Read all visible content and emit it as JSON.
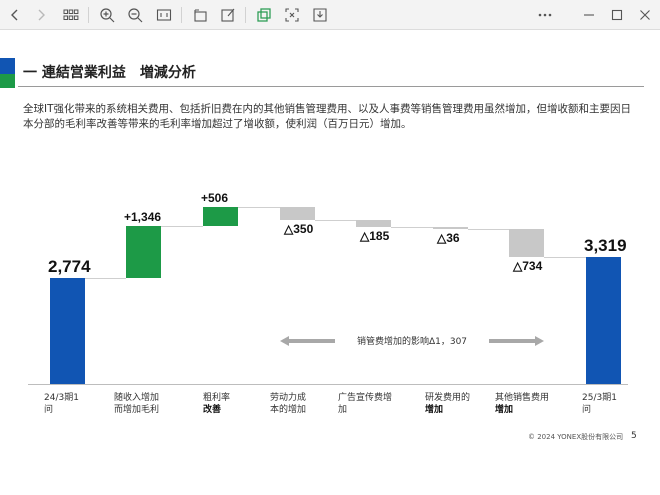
{
  "slide": {
    "title": "一 連結営業利益　増減分析",
    "description": "全球IT强化带来的系统相关费用、包括折旧费在内的其他销售管理费用、以及人事费等销售管理费用虽然增加，但增收额和主要因日本分部的毛利率改善等带来的毛利率增加超过了增收额，使利润（百万日元）增加。",
    "influence_label": "销管费增加的影响Δ1，307",
    "footer": "© 2024 YONEX股份有限公司",
    "page_number": "5",
    "colors": {
      "blue": "#1155b3",
      "green": "#1d9a47",
      "gray": "#c8c8c8"
    }
  },
  "chart_data": {
    "type": "waterfall",
    "categories": [
      "24/3期1问",
      "随收入增加而增加毛利",
      "粗利率改善",
      "劳动力成本的增加",
      "广告宣传费增加",
      "研发费用的增加",
      "其他销售费用增加",
      "25/3期1问"
    ],
    "values": [
      2774,
      1346,
      506,
      -350,
      -185,
      -36,
      -734,
      3319
    ],
    "value_labels": [
      "2,774",
      "+1,346",
      "+506",
      "△350",
      "△185",
      "△36",
      "△734",
      "3,319"
    ],
    "category_labels": [
      {
        "line1": "24/3期1",
        "line2": "问"
      },
      {
        "line1": "随收入增加",
        "line2": "而增加毛利"
      },
      {
        "line1": "粗利率",
        "line2": "改善"
      },
      {
        "line1": "劳动力成",
        "line2": "本的增加"
      },
      {
        "line1": "广告宣传费增",
        "line2": "加"
      },
      {
        "line1": "研发费用的",
        "line2": "增加"
      },
      {
        "line1": "其他销售费用",
        "line2": "增加"
      },
      {
        "line1": "25/3期1",
        "line2": "问"
      }
    ],
    "ylim": [
      0,
      5000
    ]
  },
  "toolbar": {
    "icons": [
      "back-icon",
      "forward-icon",
      "grid-icon",
      "zoom-in-icon",
      "zoom-out-icon",
      "fit-page-icon",
      "rotate-icon",
      "edit-icon",
      "select-icon",
      "crop-icon",
      "save-icon",
      "more-icon",
      "minimize-icon",
      "maximize-icon",
      "close-icon"
    ]
  }
}
